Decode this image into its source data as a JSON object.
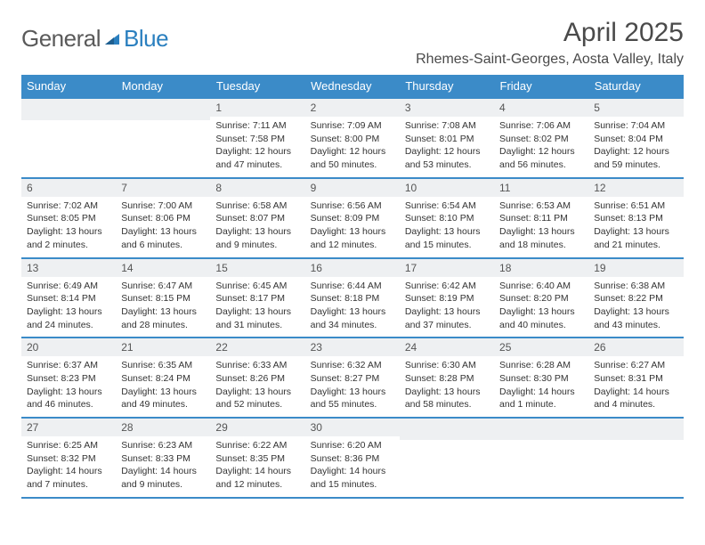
{
  "brand": {
    "part1": "General",
    "part2": "Blue"
  },
  "header": {
    "monthTitle": "April 2025",
    "location": "Rhemes-Saint-Georges, Aosta Valley, Italy"
  },
  "colors": {
    "headerBg": "#3b8bc8",
    "headerFg": "#ffffff",
    "dayNumBg": "#eef0f2",
    "borderColor": "#3b8bc8",
    "logoBlue": "#2a7fbf",
    "textGray": "#5a5a5a"
  },
  "dayNames": [
    "Sunday",
    "Monday",
    "Tuesday",
    "Wednesday",
    "Thursday",
    "Friday",
    "Saturday"
  ],
  "leadingBlanks": 2,
  "days": [
    {
      "n": 1,
      "sunrise": "7:11 AM",
      "sunset": "7:58 PM",
      "daylight": "12 hours and 47 minutes."
    },
    {
      "n": 2,
      "sunrise": "7:09 AM",
      "sunset": "8:00 PM",
      "daylight": "12 hours and 50 minutes."
    },
    {
      "n": 3,
      "sunrise": "7:08 AM",
      "sunset": "8:01 PM",
      "daylight": "12 hours and 53 minutes."
    },
    {
      "n": 4,
      "sunrise": "7:06 AM",
      "sunset": "8:02 PM",
      "daylight": "12 hours and 56 minutes."
    },
    {
      "n": 5,
      "sunrise": "7:04 AM",
      "sunset": "8:04 PM",
      "daylight": "12 hours and 59 minutes."
    },
    {
      "n": 6,
      "sunrise": "7:02 AM",
      "sunset": "8:05 PM",
      "daylight": "13 hours and 2 minutes."
    },
    {
      "n": 7,
      "sunrise": "7:00 AM",
      "sunset": "8:06 PM",
      "daylight": "13 hours and 6 minutes."
    },
    {
      "n": 8,
      "sunrise": "6:58 AM",
      "sunset": "8:07 PM",
      "daylight": "13 hours and 9 minutes."
    },
    {
      "n": 9,
      "sunrise": "6:56 AM",
      "sunset": "8:09 PM",
      "daylight": "13 hours and 12 minutes."
    },
    {
      "n": 10,
      "sunrise": "6:54 AM",
      "sunset": "8:10 PM",
      "daylight": "13 hours and 15 minutes."
    },
    {
      "n": 11,
      "sunrise": "6:53 AM",
      "sunset": "8:11 PM",
      "daylight": "13 hours and 18 minutes."
    },
    {
      "n": 12,
      "sunrise": "6:51 AM",
      "sunset": "8:13 PM",
      "daylight": "13 hours and 21 minutes."
    },
    {
      "n": 13,
      "sunrise": "6:49 AM",
      "sunset": "8:14 PM",
      "daylight": "13 hours and 24 minutes."
    },
    {
      "n": 14,
      "sunrise": "6:47 AM",
      "sunset": "8:15 PM",
      "daylight": "13 hours and 28 minutes."
    },
    {
      "n": 15,
      "sunrise": "6:45 AM",
      "sunset": "8:17 PM",
      "daylight": "13 hours and 31 minutes."
    },
    {
      "n": 16,
      "sunrise": "6:44 AM",
      "sunset": "8:18 PM",
      "daylight": "13 hours and 34 minutes."
    },
    {
      "n": 17,
      "sunrise": "6:42 AM",
      "sunset": "8:19 PM",
      "daylight": "13 hours and 37 minutes."
    },
    {
      "n": 18,
      "sunrise": "6:40 AM",
      "sunset": "8:20 PM",
      "daylight": "13 hours and 40 minutes."
    },
    {
      "n": 19,
      "sunrise": "6:38 AM",
      "sunset": "8:22 PM",
      "daylight": "13 hours and 43 minutes."
    },
    {
      "n": 20,
      "sunrise": "6:37 AM",
      "sunset": "8:23 PM",
      "daylight": "13 hours and 46 minutes."
    },
    {
      "n": 21,
      "sunrise": "6:35 AM",
      "sunset": "8:24 PM",
      "daylight": "13 hours and 49 minutes."
    },
    {
      "n": 22,
      "sunrise": "6:33 AM",
      "sunset": "8:26 PM",
      "daylight": "13 hours and 52 minutes."
    },
    {
      "n": 23,
      "sunrise": "6:32 AM",
      "sunset": "8:27 PM",
      "daylight": "13 hours and 55 minutes."
    },
    {
      "n": 24,
      "sunrise": "6:30 AM",
      "sunset": "8:28 PM",
      "daylight": "13 hours and 58 minutes."
    },
    {
      "n": 25,
      "sunrise": "6:28 AM",
      "sunset": "8:30 PM",
      "daylight": "14 hours and 1 minute."
    },
    {
      "n": 26,
      "sunrise": "6:27 AM",
      "sunset": "8:31 PM",
      "daylight": "14 hours and 4 minutes."
    },
    {
      "n": 27,
      "sunrise": "6:25 AM",
      "sunset": "8:32 PM",
      "daylight": "14 hours and 7 minutes."
    },
    {
      "n": 28,
      "sunrise": "6:23 AM",
      "sunset": "8:33 PM",
      "daylight": "14 hours and 9 minutes."
    },
    {
      "n": 29,
      "sunrise": "6:22 AM",
      "sunset": "8:35 PM",
      "daylight": "14 hours and 12 minutes."
    },
    {
      "n": 30,
      "sunrise": "6:20 AM",
      "sunset": "8:36 PM",
      "daylight": "14 hours and 15 minutes."
    }
  ],
  "labels": {
    "sunrise": "Sunrise:",
    "sunset": "Sunset:",
    "daylight": "Daylight:"
  }
}
